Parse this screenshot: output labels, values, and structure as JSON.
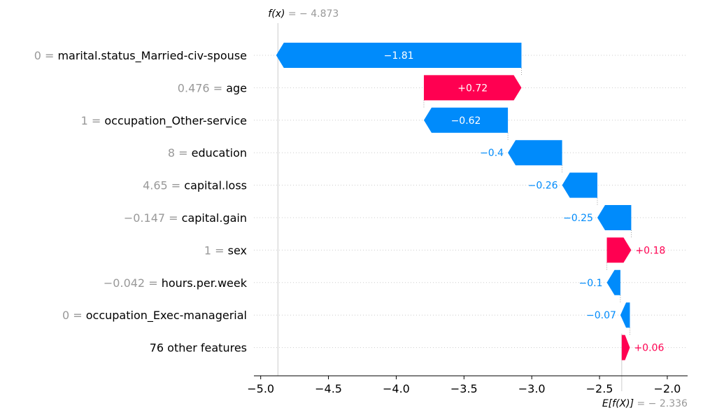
{
  "chart_data": {
    "type": "waterfall",
    "xlim": [
      -5.05,
      -1.85
    ],
    "xticks": [
      -5.0,
      -4.5,
      -4.0,
      -3.5,
      -3.0,
      -2.5,
      -2.0
    ],
    "xtick_labels": [
      "−5.0",
      "−4.5",
      "−4.0",
      "−3.5",
      "−3.0",
      "−2.5",
      "−2.0"
    ],
    "base_value": -2.336,
    "fx_value": -4.873,
    "base_label_prefix": "E[f(X)]",
    "base_label_suffix": " = − 2.336",
    "fx_label_prefix": "f(x)",
    "fx_label_suffix": " = − 4.873",
    "colors": {
      "positive": "#ff0051",
      "negative": "#008bfb",
      "grid": "#cccccc",
      "muted": "#999999"
    },
    "features": [
      {
        "value_text": "0 = ",
        "name": "marital.status_Married-civ-spouse",
        "contribution": -1.81,
        "label": "−1.81"
      },
      {
        "value_text": "0.476 = ",
        "name": "age",
        "contribution": 0.72,
        "label": "+0.72"
      },
      {
        "value_text": "1 = ",
        "name": "occupation_Other-service",
        "contribution": -0.62,
        "label": "−0.62"
      },
      {
        "value_text": "8 = ",
        "name": "education",
        "contribution": -0.4,
        "label": "−0.4"
      },
      {
        "value_text": "4.65 = ",
        "name": "capital.loss",
        "contribution": -0.26,
        "label": "−0.26"
      },
      {
        "value_text": "−0.147 = ",
        "name": "capital.gain",
        "contribution": -0.25,
        "label": "−0.25"
      },
      {
        "value_text": "1 = ",
        "name": "sex",
        "contribution": 0.18,
        "label": "+0.18"
      },
      {
        "value_text": "−0.042 = ",
        "name": "hours.per.week",
        "contribution": -0.1,
        "label": "−0.1"
      },
      {
        "value_text": "0 = ",
        "name": "occupation_Exec-managerial",
        "contribution": -0.07,
        "label": "−0.07"
      },
      {
        "value_text": "",
        "name": "76 other features",
        "contribution": 0.06,
        "label": "+0.06"
      }
    ]
  }
}
